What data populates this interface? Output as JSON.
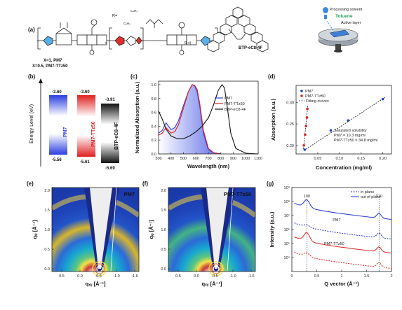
{
  "panels": {
    "a": "(a)",
    "b": "(b)",
    "c": "(c)",
    "d": "(d)",
    "e": "(e)",
    "f": "(f)",
    "g": "(g)"
  },
  "panel_a": {
    "polymer_x": "X=1, PM7",
    "polymer_tt": "X=0.5, PM7-TTz50",
    "r_label": "R=",
    "chain1": "C₄H₉",
    "chain2": "C₂H₅",
    "acceptor": "BTP-eC8-4F",
    "sub_1x": "(1-x)",
    "sub_x": "x",
    "solvent_label": "Processing solvent",
    "solvent": "Toluene",
    "active_layer": "Active layer"
  },
  "panel_b": {
    "ylabel": "Energy Level (eV)",
    "materials": [
      {
        "name": "PM7",
        "homo": "-5.56",
        "lumo": "-3.60",
        "color": "#2040e0"
      },
      {
        "name": "PM7-TTz50",
        "homo": "-5.61",
        "lumo": "-3.60",
        "color": "#e02020"
      },
      {
        "name": "BTP-eC8-4F",
        "homo": "-5.69",
        "lumo": "-3.91",
        "color": "#111111"
      }
    ]
  },
  "panel_c": {
    "chart_data": {
      "type": "line",
      "xlabel": "Wavelength (nm)",
      "ylabel": "Normalized Absorption (a.u.)",
      "xlim": [
        300,
        1100
      ],
      "ylim": [
        0,
        1.05
      ],
      "xticks": [
        300,
        400,
        500,
        600,
        700,
        800,
        900,
        1000,
        1100
      ],
      "yticks": [
        0.0,
        0.2,
        0.4,
        0.6,
        0.8,
        1.0
      ],
      "series": [
        {
          "name": "PM7",
          "color": "#2a3ee0",
          "x": [
            300,
            330,
            360,
            380,
            400,
            430,
            460,
            500,
            540,
            570,
            590,
            610,
            630,
            660,
            700,
            740,
            800
          ],
          "y": [
            0.3,
            0.34,
            0.45,
            0.4,
            0.35,
            0.38,
            0.48,
            0.7,
            0.9,
            1.0,
            0.98,
            0.9,
            0.7,
            0.3,
            0.06,
            0.02,
            0.0
          ]
        },
        {
          "name": "PM7-TTz50",
          "color": "#e02020",
          "x": [
            300,
            330,
            360,
            380,
            400,
            430,
            460,
            500,
            540,
            570,
            590,
            610,
            630,
            660,
            700,
            740,
            800
          ],
          "y": [
            0.27,
            0.3,
            0.38,
            0.34,
            0.3,
            0.32,
            0.42,
            0.66,
            0.9,
            1.0,
            0.99,
            0.93,
            0.74,
            0.34,
            0.08,
            0.02,
            0.0
          ]
        },
        {
          "name": "BTP-eC8-4F",
          "color": "#111111",
          "x": [
            300,
            330,
            360,
            400,
            450,
            500,
            550,
            600,
            650,
            700,
            740,
            780,
            810,
            830,
            850,
            880,
            920,
            1000,
            1100
          ],
          "y": [
            0.62,
            0.5,
            0.36,
            0.26,
            0.22,
            0.22,
            0.26,
            0.32,
            0.4,
            0.52,
            0.7,
            0.92,
            1.0,
            0.95,
            0.7,
            0.3,
            0.08,
            0.01,
            0.0
          ]
        }
      ]
    }
  },
  "panel_d": {
    "chart_data": {
      "type": "scatter",
      "xlabel": "Concentration (mg/ml)",
      "ylabel": "Absorption (a.u.)",
      "xlim": [
        0,
        0.22
      ],
      "ylim": [
        0.18,
        0.34
      ],
      "xticks": [
        0.05,
        0.1,
        0.15,
        0.2
      ],
      "yticks": [
        0.2,
        0.25,
        0.3
      ],
      "series": [
        {
          "name": "PM7",
          "color": "#2040d0",
          "x": [
            0.02,
            0.08,
            0.12,
            0.2
          ],
          "y": [
            0.19,
            0.235,
            0.258,
            0.308
          ]
        },
        {
          "name": "PM7-TTz50",
          "color": "#e02020",
          "x": [
            0.018,
            0.021,
            0.023,
            0.025,
            0.026
          ],
          "y": [
            0.2,
            0.225,
            0.245,
            0.265,
            0.285
          ]
        }
      ],
      "fit_label": "Fitting curves",
      "annotation": [
        "Saturated solubility",
        "PM7 = 10.3 mg/ml",
        "PM7-TTz50 = 34.8 mg/ml"
      ]
    }
  },
  "panel_e": {
    "title": "PM7",
    "xlabel": "qₓᵧ [Å⁻¹]",
    "ylabel": "qᵩ [Å⁻¹]",
    "xticks": [
      "0.5",
      "0.0",
      "-0.5",
      "-1.0",
      "-1.6"
    ],
    "yticks": [
      "0.0",
      "0.5",
      "1.0",
      "1.5",
      "2.0"
    ]
  },
  "panel_f": {
    "title": "PM7-TTz50",
    "xlabel": "qₓᵧ [Å⁻¹]",
    "ylabel": "qᵩ [Å⁻¹]",
    "xticks": [
      "0.5",
      "0.0",
      "-0.5",
      "-1.0",
      "-1.6"
    ],
    "yticks": [
      "0.0",
      "0.5",
      "1.0",
      "1.5",
      "2.0"
    ]
  },
  "panel_g": {
    "chart_data": {
      "type": "line",
      "xlabel": "Q vector (Å⁻¹)",
      "ylabel": "Intensity (a.u.)",
      "xlim": [
        0,
        2
      ],
      "yscale": "log",
      "ylim": [
        1000,
        1000000000
      ],
      "xticks": [
        0,
        0.5,
        1,
        1.5,
        2
      ],
      "yticks": [
        "10⁴",
        "10⁵",
        "10⁶",
        "10⁷",
        "10⁸",
        "10⁹"
      ],
      "peak_labels": [
        "100",
        "010"
      ],
      "sample_labels": [
        "PM7",
        "PM7-TTz50"
      ],
      "legend": [
        {
          "name": "in plane",
          "style": "dashed"
        },
        {
          "name": "out of plane",
          "style": "solid"
        }
      ]
    }
  }
}
